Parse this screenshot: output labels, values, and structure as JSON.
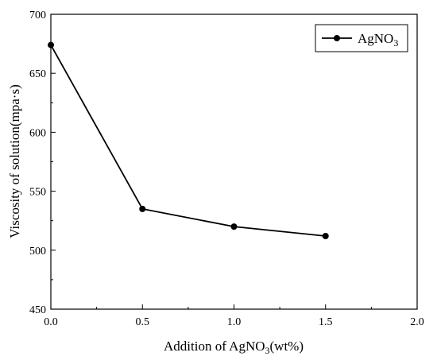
{
  "chart_data": {
    "type": "line",
    "title": "",
    "xlabel": {
      "prefix": "Addition of AgNO",
      "sub": "3",
      "suffix": "(wt%)"
    },
    "ylabel": "Viscosity of solution(mpa·s)",
    "xlim": [
      0.0,
      2.0
    ],
    "ylim": [
      450,
      700
    ],
    "xticks": [
      "0.0",
      "0.5",
      "1.0",
      "1.5",
      "2.0"
    ],
    "yticks": [
      "450",
      "500",
      "550",
      "600",
      "650",
      "700"
    ],
    "grid": false,
    "legend_position": "top-right",
    "series": [
      {
        "name": {
          "main": "AgNO",
          "sub": "3"
        },
        "color": "#000000",
        "marker": "circle",
        "x": [
          0.0,
          0.5,
          1.0,
          1.5
        ],
        "y": [
          674,
          535,
          520,
          512
        ]
      }
    ]
  }
}
